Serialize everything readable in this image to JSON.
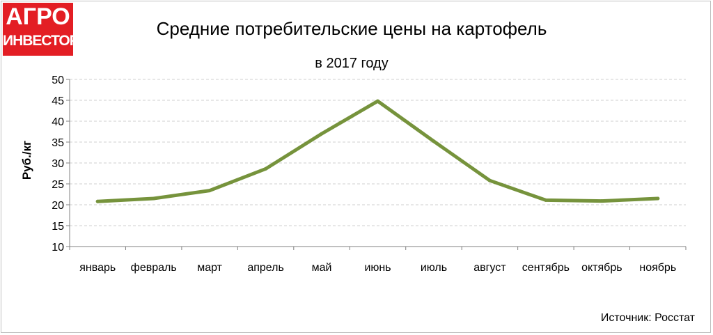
{
  "logo": {
    "line1": "АГРО",
    "line2": "ИНВЕСТОР",
    "color": "#e31e24"
  },
  "source": "Источник: Росстат",
  "chart_data": {
    "type": "line",
    "title": "Средние потребительские цены на картофель",
    "subtitle": "в 2017 году",
    "xlabel": "",
    "ylabel": "Руб./кг",
    "categories": [
      "январь",
      "февраль",
      "март",
      "апрель",
      "май",
      "июнь",
      "июль",
      "август",
      "сентябрь",
      "октябрь",
      "ноябрь"
    ],
    "series": [
      {
        "values": [
          20.8,
          21.5,
          23.4,
          28.6,
          37.0,
          44.8,
          35.2,
          25.8,
          21.1,
          20.9,
          21.5
        ],
        "color": "#76933c"
      }
    ],
    "ylim": [
      10,
      50
    ],
    "yticks": [
      10,
      15,
      20,
      25,
      30,
      35,
      40,
      45,
      50
    ],
    "grid": true,
    "legend": "none"
  }
}
